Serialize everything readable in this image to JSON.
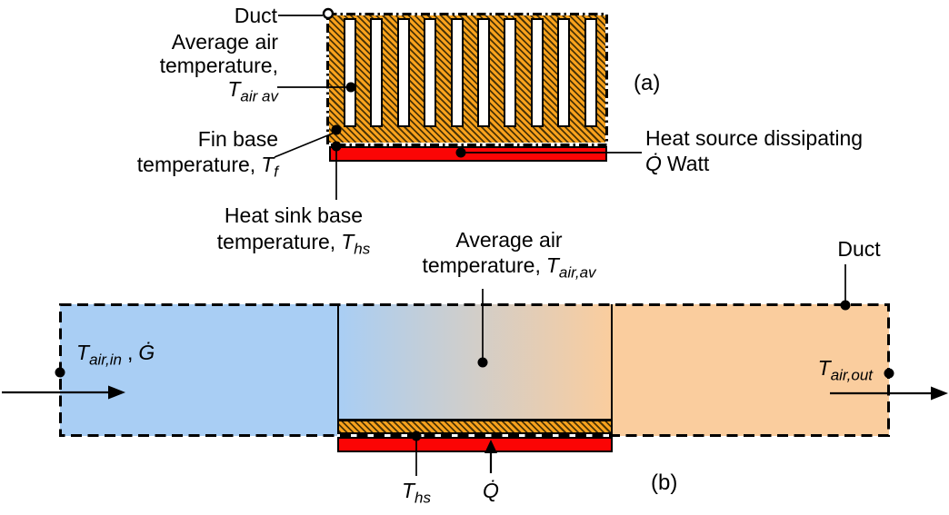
{
  "colors": {
    "heatsink_orange": "#F9A21D",
    "hatch_dark": "#4a3305",
    "heat_source_red": "#FB0505",
    "air_in_blue": "#A9CEF4",
    "air_out_orange": "#FACD9E"
  },
  "panel_a": {
    "tag": "(a)",
    "duct_label": "Duct",
    "fin_gap_count": 10,
    "avg_air": {
      "line1": "Average air",
      "line2": "temperature,",
      "sym_base": "T",
      "sym_sub": "air av"
    },
    "fin_base": {
      "line1": "Fin base",
      "line2": "temperature,",
      "sym_base": "T",
      "sym_sub": "f"
    },
    "hs_base": {
      "line1": "Heat sink base",
      "line2": "temperature,",
      "sym_base": "T",
      "sym_sub": "hs"
    },
    "heat_source": {
      "line1": "Heat source dissipating",
      "q_symbol": "Q̇",
      "line2_rest": "Watt"
    }
  },
  "panel_b": {
    "tag": "(b)",
    "duct_label": "Duct",
    "air_in": {
      "sym_base": "T",
      "sym_sub": "air,in",
      "comma": ",",
      "flow_symbol": "Ġ"
    },
    "avg_air": {
      "line1": "Average air",
      "line2": "temperature,",
      "sym_base": "T",
      "sym_sub": "air,av"
    },
    "air_out": {
      "sym_base": "T",
      "sym_sub": "air,out"
    },
    "hs_temp": {
      "sym_base": "T",
      "sym_sub": "hs"
    },
    "q_symbol": "Q̇"
  }
}
